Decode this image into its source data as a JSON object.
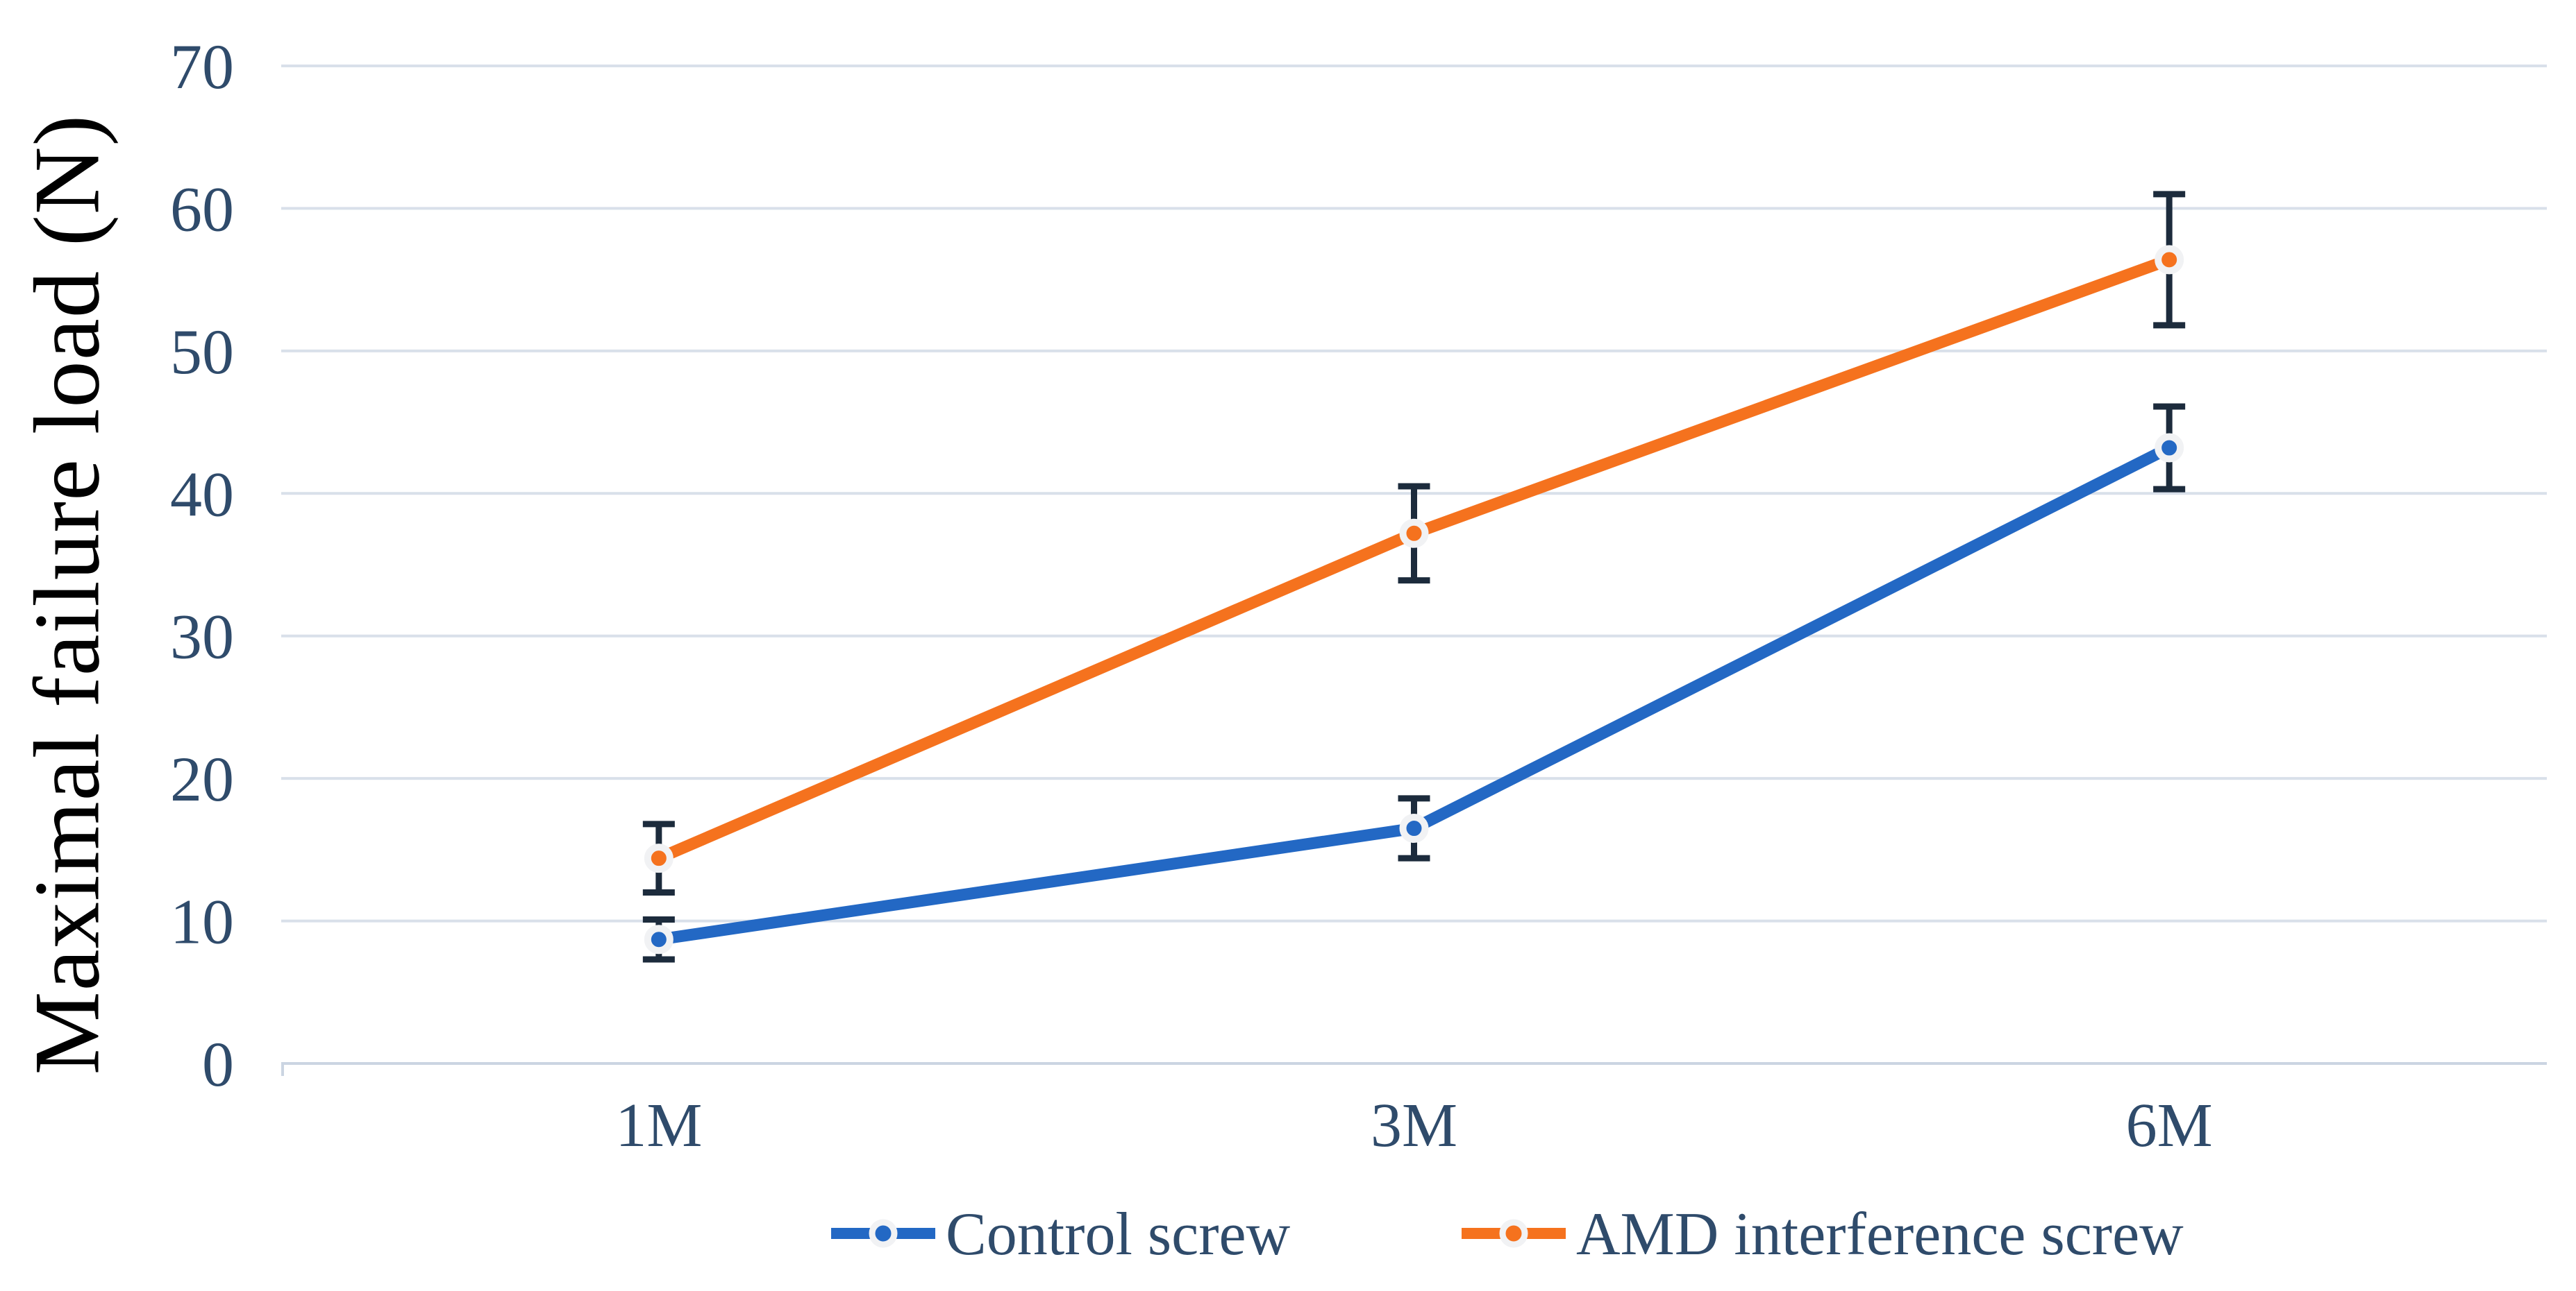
{
  "chart_data": {
    "type": "line",
    "title": "",
    "ylabel": "Maximal failure load (N)",
    "xlabel": "",
    "categories": [
      "1M",
      "3M",
      "6M"
    ],
    "series": [
      {
        "name": "Control screw",
        "color": "#2368C4",
        "values": [
          8.7,
          16.5,
          43.2
        ],
        "error": [
          1.4,
          2.1,
          2.9
        ]
      },
      {
        "name": "AMD interference screw",
        "color": "#F5721E",
        "values": [
          14.4,
          37.2,
          56.4
        ],
        "error": [
          2.4,
          3.3,
          4.6
        ]
      }
    ],
    "ylim": [
      0,
      70
    ],
    "yticks": [
      0,
      10,
      20,
      30,
      40,
      50,
      60,
      70
    ],
    "grid": true,
    "error_bars": true,
    "marker": "circle",
    "legend_position": "bottom"
  },
  "style_colors": {
    "background": "#FFFFFF",
    "gridline": "#D9E0EA",
    "axis_line": "#CBD5E2",
    "tick_text": "#2F4B6B",
    "legend_text": "#2F4B6B",
    "error_bar": "#1C2B3C",
    "marker_ring": "#F1F2F4",
    "axis_title": "#000000"
  }
}
